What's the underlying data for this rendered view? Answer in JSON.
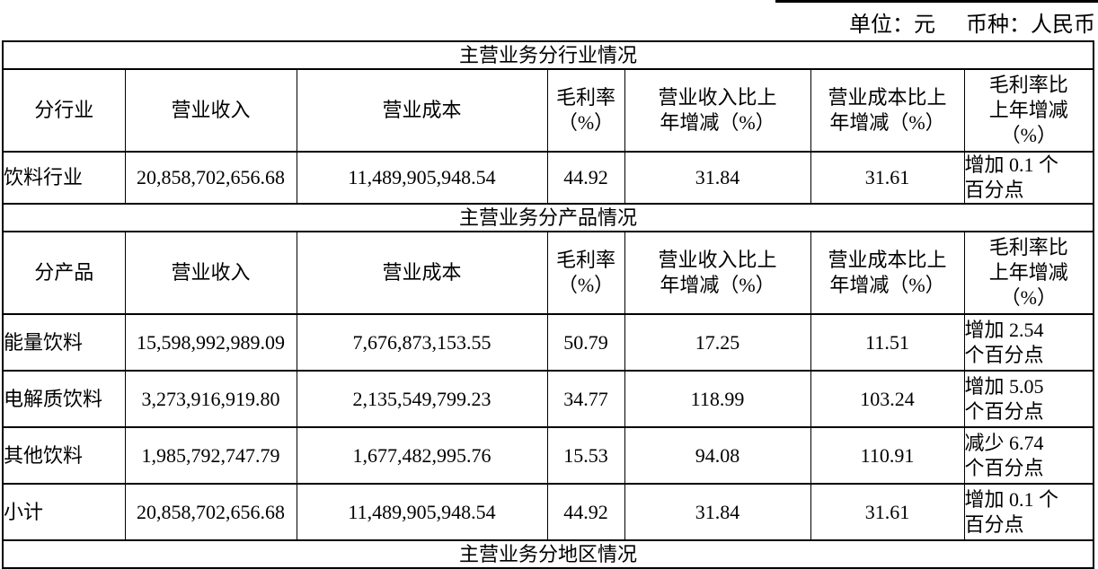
{
  "meta": {
    "unit_label": "单位：元",
    "currency_label": "币种：人民币"
  },
  "table": {
    "sections": [
      {
        "title": "主营业务分行业情况",
        "header": [
          "分行业",
          "营业收入",
          "营业成本",
          "毛利率\n（%）",
          "营业收入比上\n年增减（%）",
          "营业成本比上\n年增减（%）",
          "毛利率比\n上年增减\n（%）"
        ],
        "rows": [
          [
            "饮料行业",
            "20,858,702,656.68",
            "11,489,905,948.54",
            "44.92",
            "31.84",
            "31.61",
            "增加 0.1 个\n百分点"
          ]
        ]
      },
      {
        "title": "主营业务分产品情况",
        "header": [
          "分产品",
          "营业收入",
          "营业成本",
          "毛利率\n（%）",
          "营业收入比上\n年增减（%）",
          "营业成本比上\n年增减（%）",
          "毛利率比\n上年增减\n（%）"
        ],
        "rows": [
          [
            "能量饮料",
            "15,598,992,989.09",
            "7,676,873,153.55",
            "50.79",
            "17.25",
            "11.51",
            "增加 2.54\n个百分点"
          ],
          [
            "电解质饮料",
            "3,273,916,919.80",
            "2,135,549,799.23",
            "34.77",
            "118.99",
            "103.24",
            "增加 5.05\n个百分点"
          ],
          [
            "其他饮料",
            "1,985,792,747.79",
            "1,677,482,995.76",
            "15.53",
            "94.08",
            "110.91",
            "减少 6.74\n个百分点"
          ],
          [
            "小计",
            "20,858,702,656.68",
            "11,489,905,948.54",
            "44.92",
            "31.84",
            "31.61",
            "增加 0.1 个\n百分点"
          ]
        ]
      },
      {
        "title": "主营业务分地区情况",
        "header": null,
        "rows": []
      }
    ]
  }
}
